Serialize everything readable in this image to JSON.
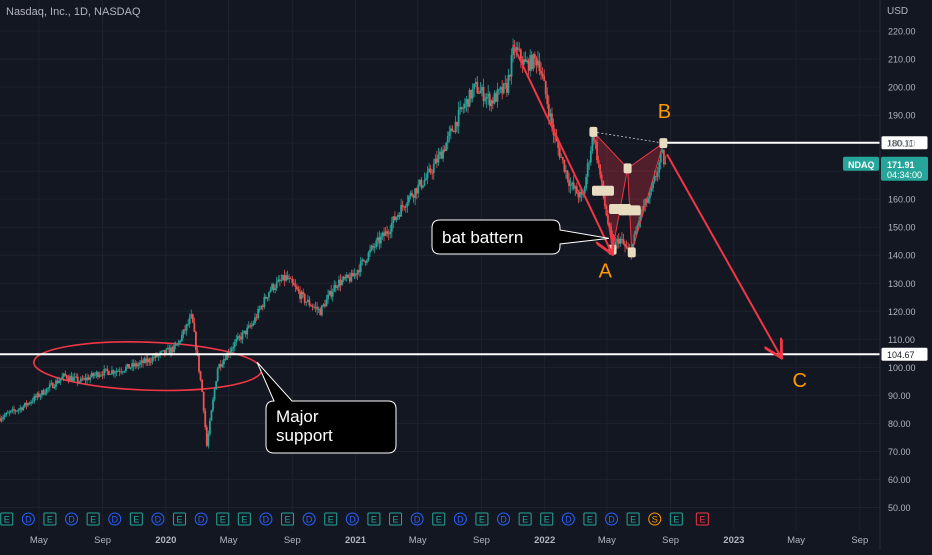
{
  "header": {
    "title": "Nasdaq, Inc., 1D, NASDAQ"
  },
  "colors": {
    "background": "#131722",
    "grid": "#1e222d",
    "axis_text": "#b2b5be",
    "candle_up": "#26a69a",
    "candle_down": "#ef5350",
    "annotation_red": "#f23645",
    "level_line": "#ffffff",
    "point_label": "#ff9800",
    "price_badge": "#26a69a",
    "callout_bg": "#000000"
  },
  "chart_data": {
    "type": "candlestick",
    "title": "Nasdaq, Inc., 1D, NASDAQ",
    "currency_label": "USD",
    "symbol": "NDAQ",
    "last_price": "171.91",
    "countdown": "04:34:00",
    "y_ticks": [
      50,
      60,
      70,
      80,
      90,
      100,
      110,
      120,
      130,
      140,
      150,
      160,
      170,
      180,
      190,
      200,
      210,
      220
    ],
    "y_tick_labels": [
      "50.00",
      "60.00",
      "70.00",
      "80.00",
      "90.00",
      "100.00",
      "110.00",
      "120.00",
      "130.00",
      "140.00",
      "150.00",
      "160.00",
      "170.00",
      "180.00",
      "190.00",
      "200.00",
      "210.00",
      "220.00"
    ],
    "ylim": [
      45,
      225
    ],
    "x_ticks": [
      {
        "label": "May",
        "date": "2019-05-01"
      },
      {
        "label": "Sep",
        "date": "2019-09-01"
      },
      {
        "label": "2020",
        "date": "2020-01-01"
      },
      {
        "label": "May",
        "date": "2020-05-01"
      },
      {
        "label": "Sep",
        "date": "2020-09-01"
      },
      {
        "label": "2021",
        "date": "2021-01-01"
      },
      {
        "label": "May",
        "date": "2021-05-01"
      },
      {
        "label": "Sep",
        "date": "2021-09-01"
      },
      {
        "label": "2022",
        "date": "2022-01-01"
      },
      {
        "label": "May",
        "date": "2022-05-01"
      },
      {
        "label": "Sep",
        "date": "2022-09-01"
      },
      {
        "label": "2023",
        "date": "2023-01-01"
      },
      {
        "label": "May",
        "date": "2023-05-01"
      },
      {
        "label": "Sep",
        "date": "2023-09-01"
      }
    ],
    "xlim": [
      "2019-02-15",
      "2023-10-10"
    ],
    "price_path": [
      [
        "2019-02-15",
        82
      ],
      [
        "2019-04-01",
        86
      ],
      [
        "2019-05-15",
        92
      ],
      [
        "2019-06-20",
        97
      ],
      [
        "2019-07-20",
        95
      ],
      [
        "2019-08-25",
        98
      ],
      [
        "2019-10-01",
        99
      ],
      [
        "2019-11-10",
        101
      ],
      [
        "2019-12-15",
        104
      ],
      [
        "2020-01-20",
        107
      ],
      [
        "2020-02-20",
        118
      ],
      [
        "2020-03-12",
        90
      ],
      [
        "2020-03-20",
        72
      ],
      [
        "2020-04-10",
        100
      ],
      [
        "2020-05-10",
        108
      ],
      [
        "2020-06-15",
        115
      ],
      [
        "2020-07-20",
        128
      ],
      [
        "2020-08-20",
        132
      ],
      [
        "2020-09-25",
        124
      ],
      [
        "2020-10-25",
        120
      ],
      [
        "2020-11-25",
        130
      ],
      [
        "2020-12-25",
        132
      ],
      [
        "2021-02-01",
        142
      ],
      [
        "2021-03-01",
        148
      ],
      [
        "2021-04-10",
        160
      ],
      [
        "2021-05-20",
        168
      ],
      [
        "2021-06-20",
        178
      ],
      [
        "2021-07-20",
        190
      ],
      [
        "2021-08-20",
        200
      ],
      [
        "2021-09-20",
        195
      ],
      [
        "2021-10-20",
        200
      ],
      [
        "2021-11-03",
        214
      ],
      [
        "2021-11-25",
        208
      ],
      [
        "2021-12-20",
        210
      ],
      [
        "2022-01-20",
        182
      ],
      [
        "2022-02-20",
        165
      ],
      [
        "2022-03-15",
        160
      ],
      [
        "2022-04-05",
        184
      ],
      [
        "2022-04-25",
        160
      ],
      [
        "2022-05-12",
        142
      ],
      [
        "2022-05-25",
        146
      ],
      [
        "2022-06-15",
        140
      ],
      [
        "2022-07-05",
        155
      ],
      [
        "2022-07-25",
        162
      ],
      [
        "2022-08-15",
        176
      ],
      [
        "2022-08-22",
        172
      ]
    ],
    "horizontal_levels": [
      {
        "value": 180.11,
        "label": "180.11",
        "start": "2022-08-25"
      },
      {
        "value": 104.67,
        "label": "104.67",
        "start": "2019-02-15"
      }
    ],
    "projection_arrows": [
      {
        "from": [
          "2021-11-01",
          215
        ],
        "to": [
          "2022-05-10",
          141
        ]
      },
      {
        "from": [
          "2022-08-25",
          176
        ],
        "to": [
          "2023-04-01",
          104
        ]
      }
    ],
    "point_labels": [
      {
        "text": "A",
        "date": "2022-04-28",
        "value": 132
      },
      {
        "text": "B",
        "date": "2022-08-20",
        "value": 189
      },
      {
        "text": "C",
        "date": "2023-05-08",
        "value": 93
      }
    ],
    "callouts": [
      {
        "text_lines": [
          "bat battern"
        ],
        "anchor": [
          "2022-05-05",
          146
        ]
      },
      {
        "text_lines": [
          "Major",
          "support"
        ],
        "anchor": [
          "2020-06-25",
          104
        ]
      }
    ],
    "earnings_markers": [
      "E",
      "D",
      "E",
      "D",
      "E",
      "D",
      "E",
      "D",
      "E",
      "D",
      "E",
      "E",
      "D",
      "E",
      "D",
      "E",
      "D",
      "E",
      "E",
      "D",
      "E",
      "D",
      "E",
      "D",
      "E",
      "E",
      "D",
      "E",
      "D",
      "E",
      "S",
      "E"
    ]
  }
}
